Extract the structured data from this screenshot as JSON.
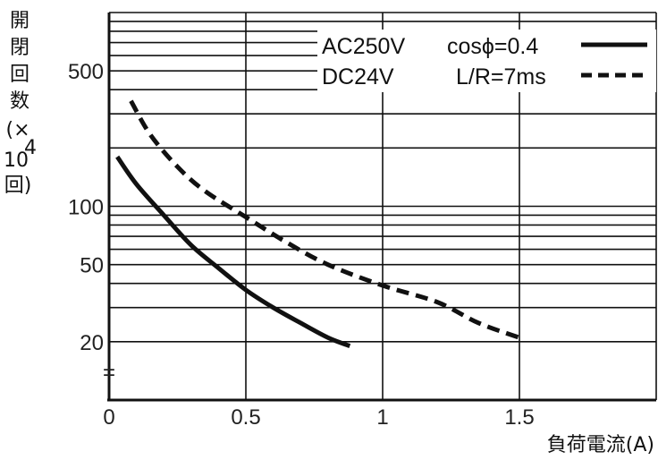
{
  "chart_data": {
    "type": "line",
    "xlabel": "負荷電流(A)",
    "ylabel_parts": [
      "開",
      "閉",
      "回",
      "数",
      "(×",
      "10",
      "4",
      "回)"
    ],
    "xlim": [
      0,
      2
    ],
    "ylim": [
      10,
      1000
    ],
    "yscale": "log",
    "grid": "horizontal log grid and vertical grid at 0.5 A steps",
    "xticks": [
      {
        "value": 0,
        "label": "0"
      },
      {
        "value": 0.5,
        "label": "0.5"
      },
      {
        "value": 1,
        "label": "1"
      },
      {
        "value": 1.5,
        "label": "1.5"
      }
    ],
    "yticks": [
      {
        "value": 500,
        "label": "500"
      },
      {
        "value": 100,
        "label": "100"
      },
      {
        "value": 50,
        "label": "50"
      },
      {
        "value": 20,
        "label": "20"
      }
    ],
    "y_break_symbol": "=",
    "series": [
      {
        "name": "AC250V",
        "condition": "cosϕ=0.4",
        "style": "solid",
        "x": [
          0.03,
          0.1,
          0.2,
          0.3,
          0.4,
          0.5,
          0.6,
          0.7,
          0.8,
          0.88
        ],
        "y": [
          180,
          130,
          90,
          63,
          48,
          37,
          30,
          25,
          21,
          19
        ]
      },
      {
        "name": "DC24V",
        "condition": "L/R=7ms",
        "style": "dashed",
        "x": [
          0.08,
          0.15,
          0.25,
          0.35,
          0.5,
          0.65,
          0.8,
          1.0,
          1.2,
          1.35,
          1.5
        ],
        "y": [
          350,
          235,
          160,
          120,
          88,
          65,
          50,
          39,
          32,
          25,
          21
        ]
      }
    ]
  }
}
